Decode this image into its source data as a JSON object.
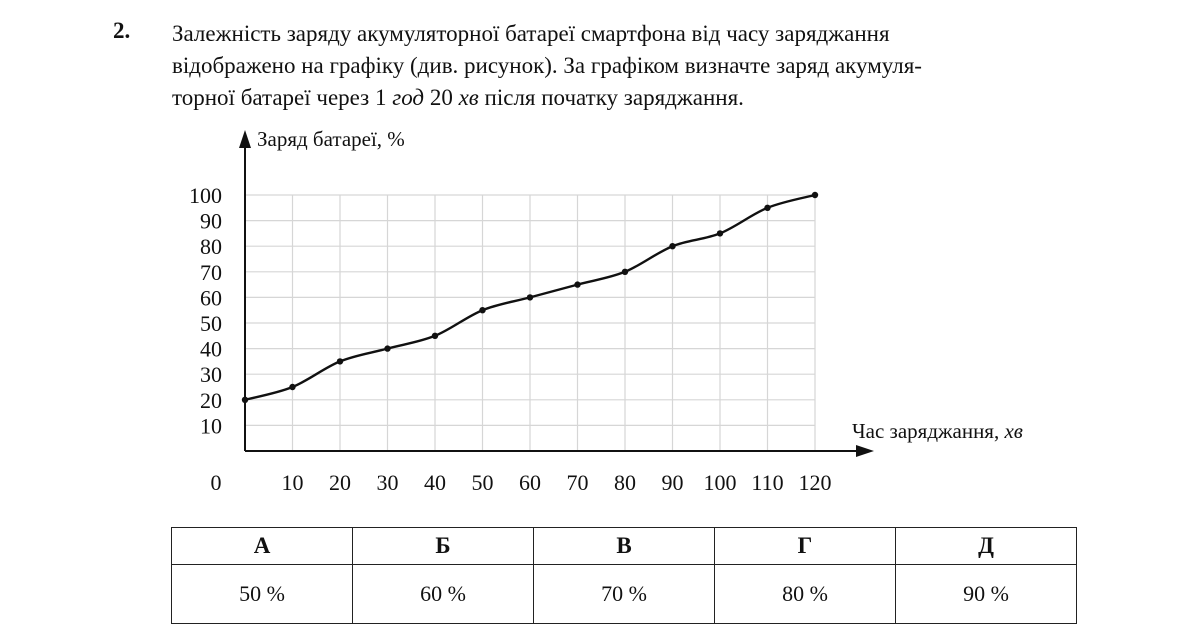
{
  "question": {
    "number": "2.",
    "line1": "Залежність заряду акумуляторної батареї смартфона від часу заряджання",
    "line2": "відображено на графіку (див. рисунок). За графіком визначте заряд акумуля-",
    "line3_pre": "торної батареї через 1 ",
    "line3_unit1": "год",
    "line3_mid": " 20 ",
    "line3_unit2": "хв",
    "line3_post": " після початку заряджання."
  },
  "chart_data": {
    "type": "line",
    "ylabel": "Заряд батареї, %",
    "xlabel_text": "Час заряджання, ",
    "xlabel_unit": "хв",
    "origin_label": "0",
    "x": [
      0,
      10,
      20,
      30,
      40,
      50,
      60,
      70,
      80,
      90,
      100,
      110,
      120
    ],
    "y": [
      20,
      25,
      35,
      40,
      45,
      55,
      60,
      65,
      70,
      80,
      85,
      95,
      100
    ],
    "x_ticks": [
      "10",
      "20",
      "30",
      "40",
      "50",
      "60",
      "70",
      "80",
      "90",
      "100",
      "110",
      "120"
    ],
    "y_ticks": [
      "10",
      "20",
      "30",
      "40",
      "50",
      "60",
      "70",
      "80",
      "90",
      "100"
    ],
    "xlim": [
      0,
      120
    ],
    "ylim": [
      0,
      100
    ],
    "grid": true
  },
  "answers": {
    "letters": [
      "А",
      "Б",
      "В",
      "Г",
      "Д"
    ],
    "values": [
      "50 %",
      "60 %",
      "70 %",
      "80 %",
      "90 %"
    ]
  }
}
